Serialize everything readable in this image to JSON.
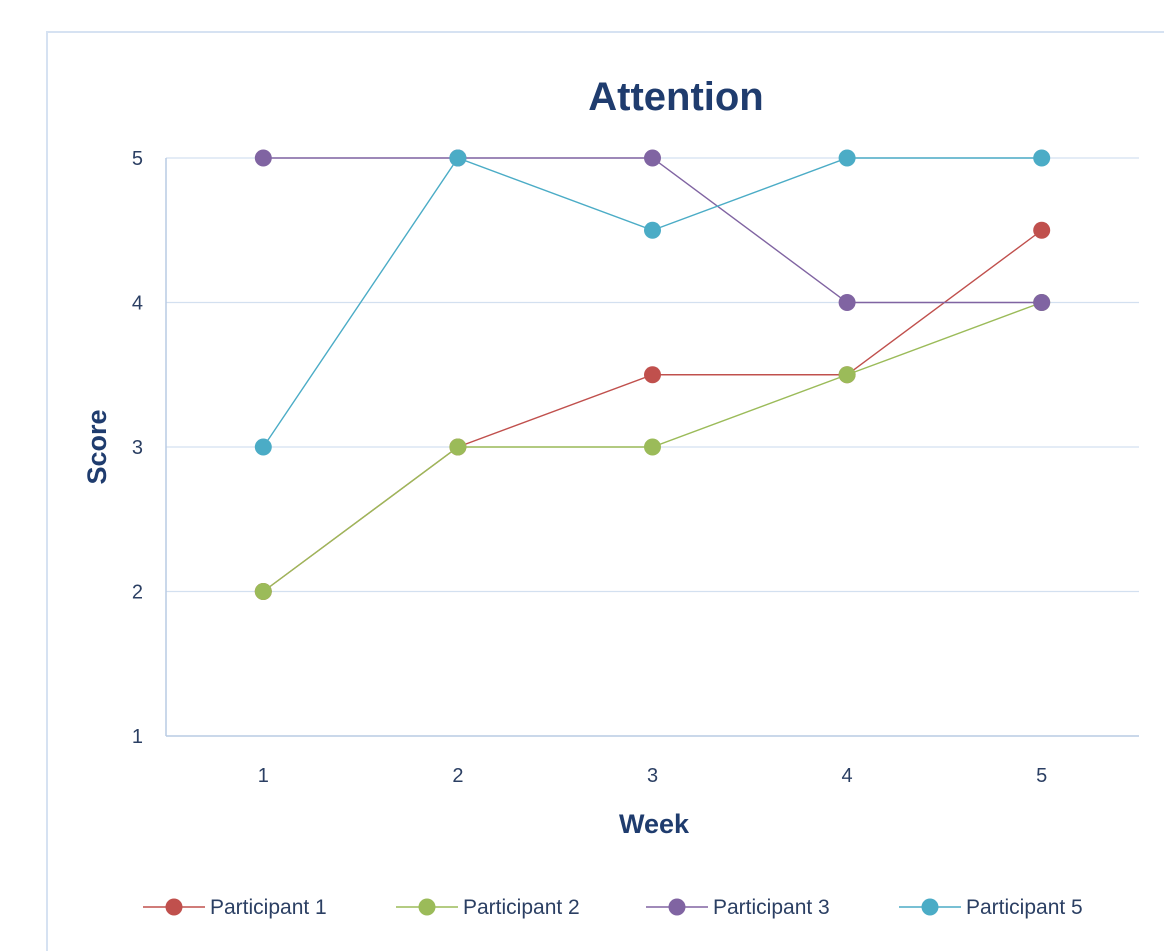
{
  "chart_data": {
    "type": "line",
    "title": "Attention",
    "xlabel": "Week",
    "ylabel": "Score",
    "categories": [
      "1",
      "2",
      "3",
      "4",
      "5"
    ],
    "ylim": [
      1,
      5
    ],
    "yticks": [
      "1",
      "2",
      "3",
      "4",
      "5"
    ],
    "grid": true,
    "legend_position": "bottom",
    "series": [
      {
        "name": "Participant 1",
        "color": "#c0504d",
        "values": [
          2,
          3,
          3.5,
          3.5,
          4.5
        ]
      },
      {
        "name": "Participant 2",
        "color": "#9bbb59",
        "values": [
          2,
          3,
          3,
          3.5,
          4
        ]
      },
      {
        "name": "Participant 3",
        "color": "#8064a2",
        "values": [
          5,
          5,
          5,
          4,
          4
        ]
      },
      {
        "name": "Participant 5",
        "color": "#4bacc6",
        "values": [
          3,
          5,
          4.5,
          5,
          5
        ]
      }
    ]
  }
}
